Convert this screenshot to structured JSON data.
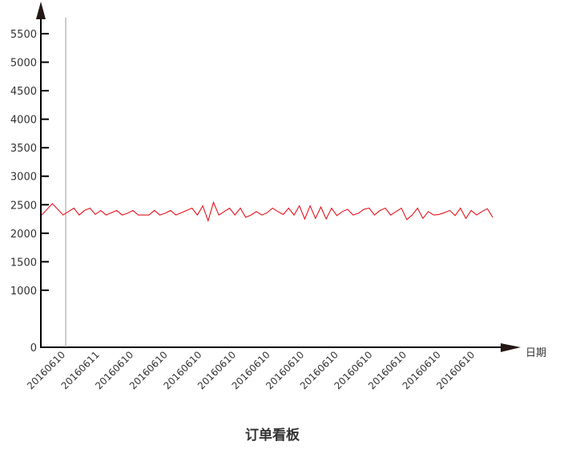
{
  "chart_data": {
    "type": "line",
    "title": "订单看板",
    "xlabel": "日期",
    "ylabel": "",
    "ylim": [
      0,
      5500
    ],
    "y_ticks": [
      0,
      1000,
      1500,
      2000,
      2500,
      3000,
      3500,
      4000,
      4500,
      5000,
      5500
    ],
    "x_tick_labels": [
      "20160610",
      "20160611",
      "20160610",
      "20160610",
      "20160610",
      "20160610",
      "20160610",
      "20160610",
      "20160610",
      "20160610",
      "20160610",
      "20160610",
      "20160610"
    ],
    "grid": false,
    "series": [
      {
        "color": "#e8121c",
        "values": [
          2320,
          2420,
          2520,
          2420,
          2320,
          2380,
          2440,
          2320,
          2400,
          2440,
          2330,
          2400,
          2320,
          2360,
          2400,
          2320,
          2350,
          2400,
          2320,
          2320,
          2320,
          2400,
          2320,
          2350,
          2400,
          2320,
          2360,
          2400,
          2440,
          2320,
          2480,
          2220,
          2540,
          2320,
          2380,
          2440,
          2320,
          2440,
          2280,
          2320,
          2380,
          2320,
          2360,
          2440,
          2380,
          2330,
          2440,
          2320,
          2480,
          2250,
          2480,
          2260,
          2460,
          2250,
          2440,
          2310,
          2380,
          2420,
          2320,
          2350,
          2420,
          2440,
          2320,
          2400,
          2440,
          2320,
          2380,
          2440,
          2240,
          2320,
          2440,
          2260,
          2380,
          2320,
          2330,
          2360,
          2400,
          2310,
          2440,
          2260,
          2400,
          2320,
          2380,
          2430,
          2280
        ]
      }
    ]
  },
  "colors": {
    "axis": "#000000",
    "line": "#e8121c",
    "marker_line": "#999999"
  }
}
